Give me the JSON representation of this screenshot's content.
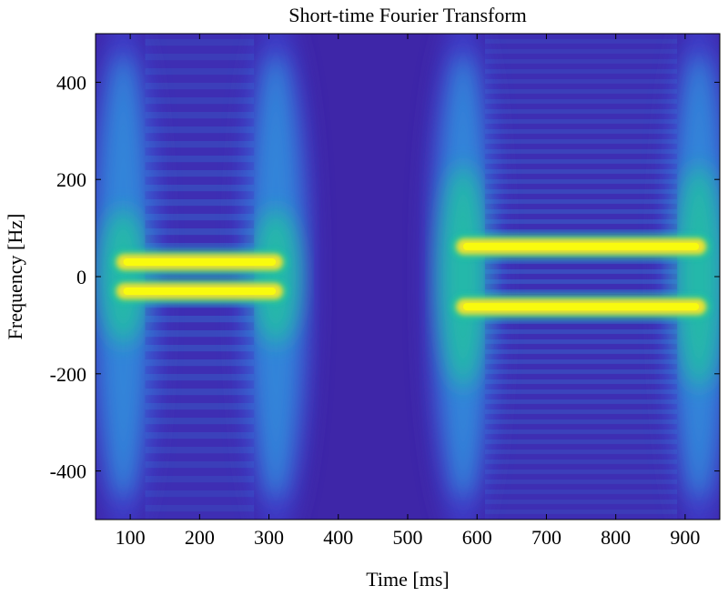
{
  "chart_data": {
    "type": "heatmap",
    "title": "Short-time Fourier Transform",
    "xlabel": "Time [ms]",
    "ylabel": "Frequency [Hz]",
    "xlim": [
      50,
      950
    ],
    "ylim": [
      -500,
      500
    ],
    "x_ticks": [
      100,
      200,
      300,
      400,
      500,
      600,
      700,
      800,
      900
    ],
    "y_ticks": [
      400,
      200,
      0,
      -200,
      -400
    ],
    "grid": false,
    "legend": "none",
    "colormap": "parula",
    "colors": {
      "background": "#3e26a8",
      "low": "#3f3ec9",
      "mid": "#2f9ee0",
      "teal": "#21c2a0",
      "high": "#f5e52a",
      "peak": "#f9fb0e"
    },
    "segments": [
      {
        "t_start": 90,
        "t_end": 310,
        "frequencies": [
          30,
          -30
        ]
      },
      {
        "t_start": 580,
        "t_end": 920,
        "frequencies": [
          62,
          -62
        ]
      }
    ]
  }
}
